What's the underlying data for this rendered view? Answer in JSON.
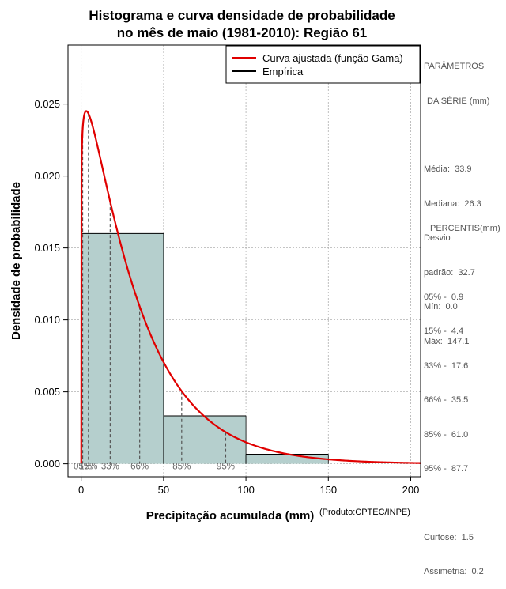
{
  "title": {
    "line1": "Histograma e curva densidade de probabilidade",
    "line2": "no mês de maio (1981-2010): Região 61"
  },
  "xlabel": "Precipitação acumulada (mm)",
  "ylabel": "Densidade de probabilidade",
  "credit": "(Produto:CPTEC/INPE)",
  "legend": {
    "fitted": "Curva ajustada (função Gama)",
    "empirical": "Empírica"
  },
  "colors": {
    "curve": "#e00000",
    "bars": "#b5cfcd",
    "bar_stroke": "#000000",
    "grid": "#b0b0b0",
    "percentile_lines": "#555555",
    "percentile_labels": "#666666",
    "side_text": "#555555"
  },
  "stats_panel": {
    "header1": "PARÂMETROS",
    "header2": "DA SÉRIE (mm)",
    "lines": [
      "Média:  33.9",
      "Mediana:  26.3",
      "Desvio",
      "padrão:  32.7",
      "Mín:  0.0",
      "Máx:  147.1"
    ]
  },
  "percentiles_panel": {
    "header": "PERCENTIS(mm)",
    "lines": [
      "05% -  0.9",
      "15% -  4.4",
      "33% -  17.6",
      "66% -  35.5",
      "85% -  61.0",
      "95% -  87.7"
    ],
    "extra": [
      "Curtose:  1.5",
      "Assimetria:  0.2"
    ]
  },
  "chart_data": {
    "type": "bar",
    "xlim": [
      -8,
      206
    ],
    "ylim": [
      -0.0009,
      0.0291
    ],
    "xticks": [
      0,
      50,
      100,
      150,
      200
    ],
    "yticks": [
      0.0,
      0.005,
      0.01,
      0.015,
      0.02,
      0.025
    ],
    "ytick_labels": [
      "0.000",
      "0.005",
      "0.010",
      "0.015",
      "0.020",
      "0.025"
    ],
    "grid": true,
    "legend_position": "top-right",
    "histogram": {
      "bins": [
        [
          0,
          50
        ],
        [
          50,
          100
        ],
        [
          100,
          150
        ]
      ],
      "density": [
        0.016,
        0.00333,
        0.000667
      ]
    },
    "gamma_curve": {
      "shape": 1.1,
      "scale": 30.82,
      "x_range": [
        0.2,
        206
      ]
    },
    "percentiles": [
      {
        "label": "05%",
        "value": 0.9
      },
      {
        "label": "15%",
        "value": 4.4
      },
      {
        "label": "33%",
        "value": 17.6
      },
      {
        "label": "66%",
        "value": 35.5
      },
      {
        "label": "85%",
        "value": 61.0
      },
      {
        "label": "95%",
        "value": 87.7
      }
    ]
  }
}
